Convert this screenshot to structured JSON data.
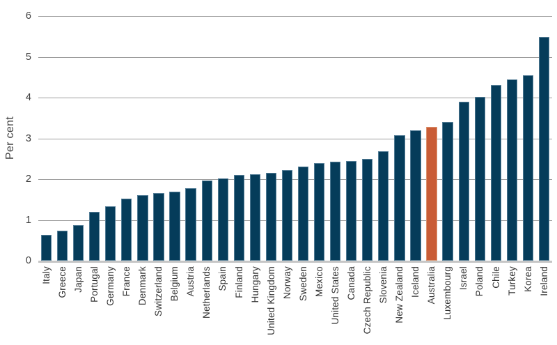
{
  "chart_data": {
    "type": "bar",
    "title": "",
    "xlabel": "",
    "ylabel": "Per cent",
    "ylim": [
      0,
      6
    ],
    "yticks": [
      0,
      1,
      2,
      3,
      4,
      5,
      6
    ],
    "grid": "horizontal",
    "legend": "none",
    "categories": [
      "Italy",
      "Greece",
      "Japan",
      "Portugal",
      "Germany",
      "France",
      "Denmark",
      "Switzerland",
      "Belgium",
      "Austria",
      "Netherlands",
      "Spain",
      "Finland",
      "Hungary",
      "United Kingdom",
      "Norway",
      "Sweden",
      "Mexico",
      "United States",
      "Canada",
      "Czech Republic",
      "Slovenia",
      "New Zealand",
      "Iceland",
      "Australia",
      "Luxembourg",
      "Israel",
      "Poland",
      "Chile",
      "Turkey",
      "Korea",
      "Ireland"
    ],
    "values": [
      0.64,
      0.73,
      0.88,
      1.19,
      1.34,
      1.52,
      1.61,
      1.65,
      1.69,
      1.77,
      1.97,
      2.01,
      2.11,
      2.12,
      2.15,
      2.22,
      2.31,
      2.4,
      2.42,
      2.44,
      2.5,
      2.69,
      3.08,
      3.19,
      3.28,
      3.4,
      3.89,
      4.02,
      4.3,
      4.45,
      4.54,
      5.48
    ],
    "highlight_category": "Australia",
    "colors": {
      "bar_fill": "#053c5a",
      "bar_edge": "#557e97",
      "highlight_fill": "#c95c36",
      "highlight_edge": "#dd9672",
      "gridline": "#9d9d9d",
      "axis_line": "#c6c6c6",
      "text": "#3d3d3d"
    }
  }
}
